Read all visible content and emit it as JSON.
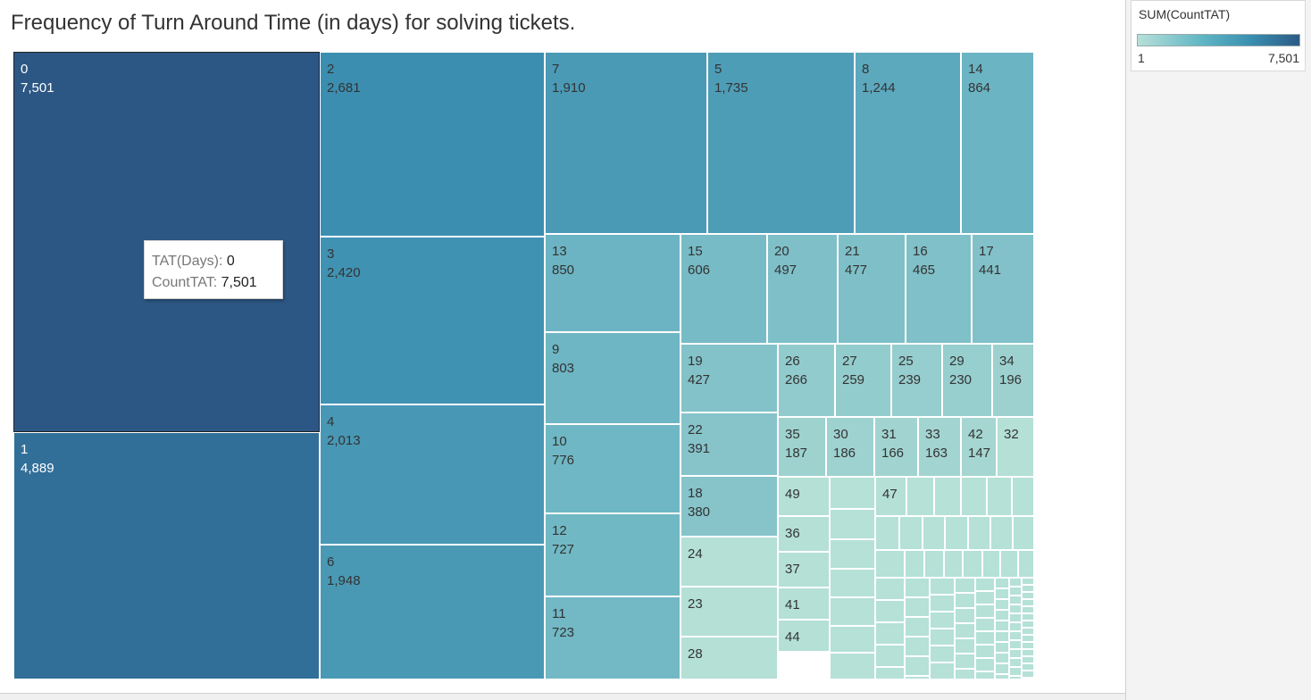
{
  "chart_data": {
    "type": "treemap",
    "title": "Frequency of Turn Around Time (in days) for solving tickets.",
    "measure": "SUM(CountTAT)",
    "color_range": {
      "min": 1,
      "max": 7501,
      "min_label": "1",
      "max_label": "7,501"
    },
    "items": [
      {
        "label": "0",
        "value": 7501,
        "value_label": "7,501"
      },
      {
        "label": "1",
        "value": 4889,
        "value_label": "4,889"
      },
      {
        "label": "2",
        "value": 2681,
        "value_label": "2,681"
      },
      {
        "label": "3",
        "value": 2420,
        "value_label": "2,420"
      },
      {
        "label": "4",
        "value": 2013,
        "value_label": "2,013"
      },
      {
        "label": "6",
        "value": 1948,
        "value_label": "1,948"
      },
      {
        "label": "7",
        "value": 1910,
        "value_label": "1,910"
      },
      {
        "label": "5",
        "value": 1735,
        "value_label": "1,735"
      },
      {
        "label": "8",
        "value": 1244,
        "value_label": "1,244"
      },
      {
        "label": "14",
        "value": 864,
        "value_label": "864"
      },
      {
        "label": "13",
        "value": 850,
        "value_label": "850"
      },
      {
        "label": "9",
        "value": 803,
        "value_label": "803"
      },
      {
        "label": "10",
        "value": 776,
        "value_label": "776"
      },
      {
        "label": "12",
        "value": 727,
        "value_label": "727"
      },
      {
        "label": "11",
        "value": 723,
        "value_label": "723"
      },
      {
        "label": "15",
        "value": 606,
        "value_label": "606"
      },
      {
        "label": "20",
        "value": 497,
        "value_label": "497"
      },
      {
        "label": "21",
        "value": 477,
        "value_label": "477"
      },
      {
        "label": "16",
        "value": 465,
        "value_label": "465"
      },
      {
        "label": "17",
        "value": 441,
        "value_label": "441"
      },
      {
        "label": "19",
        "value": 427,
        "value_label": "427"
      },
      {
        "label": "26",
        "value": 266,
        "value_label": "266"
      },
      {
        "label": "27",
        "value": 259,
        "value_label": "259"
      },
      {
        "label": "25",
        "value": 239,
        "value_label": "239"
      },
      {
        "label": "29",
        "value": 230,
        "value_label": "230"
      },
      {
        "label": "34",
        "value": 196,
        "value_label": "196"
      },
      {
        "label": "22",
        "value": 391,
        "value_label": "391"
      },
      {
        "label": "35",
        "value": 187,
        "value_label": "187"
      },
      {
        "label": "30",
        "value": 186,
        "value_label": "186"
      },
      {
        "label": "31",
        "value": 166,
        "value_label": "166"
      },
      {
        "label": "33",
        "value": 163,
        "value_label": "163"
      },
      {
        "label": "42",
        "value": 147,
        "value_label": "147"
      },
      {
        "label": "32",
        "value": null,
        "value_label": ""
      },
      {
        "label": "18",
        "value": 380,
        "value_label": "380"
      },
      {
        "label": "24",
        "value": null,
        "value_label": ""
      },
      {
        "label": "23",
        "value": null,
        "value_label": ""
      },
      {
        "label": "28",
        "value": null,
        "value_label": ""
      },
      {
        "label": "49",
        "value": null,
        "value_label": ""
      },
      {
        "label": "36",
        "value": null,
        "value_label": ""
      },
      {
        "label": "37",
        "value": null,
        "value_label": ""
      },
      {
        "label": "41",
        "value": null,
        "value_label": ""
      },
      {
        "label": "44",
        "value": null,
        "value_label": ""
      },
      {
        "label": "47",
        "value": null,
        "value_label": ""
      }
    ]
  },
  "tooltip": {
    "k1": "TAT(Days): ",
    "v1": "0",
    "k2": "CountTAT: ",
    "v2": "7,501"
  }
}
